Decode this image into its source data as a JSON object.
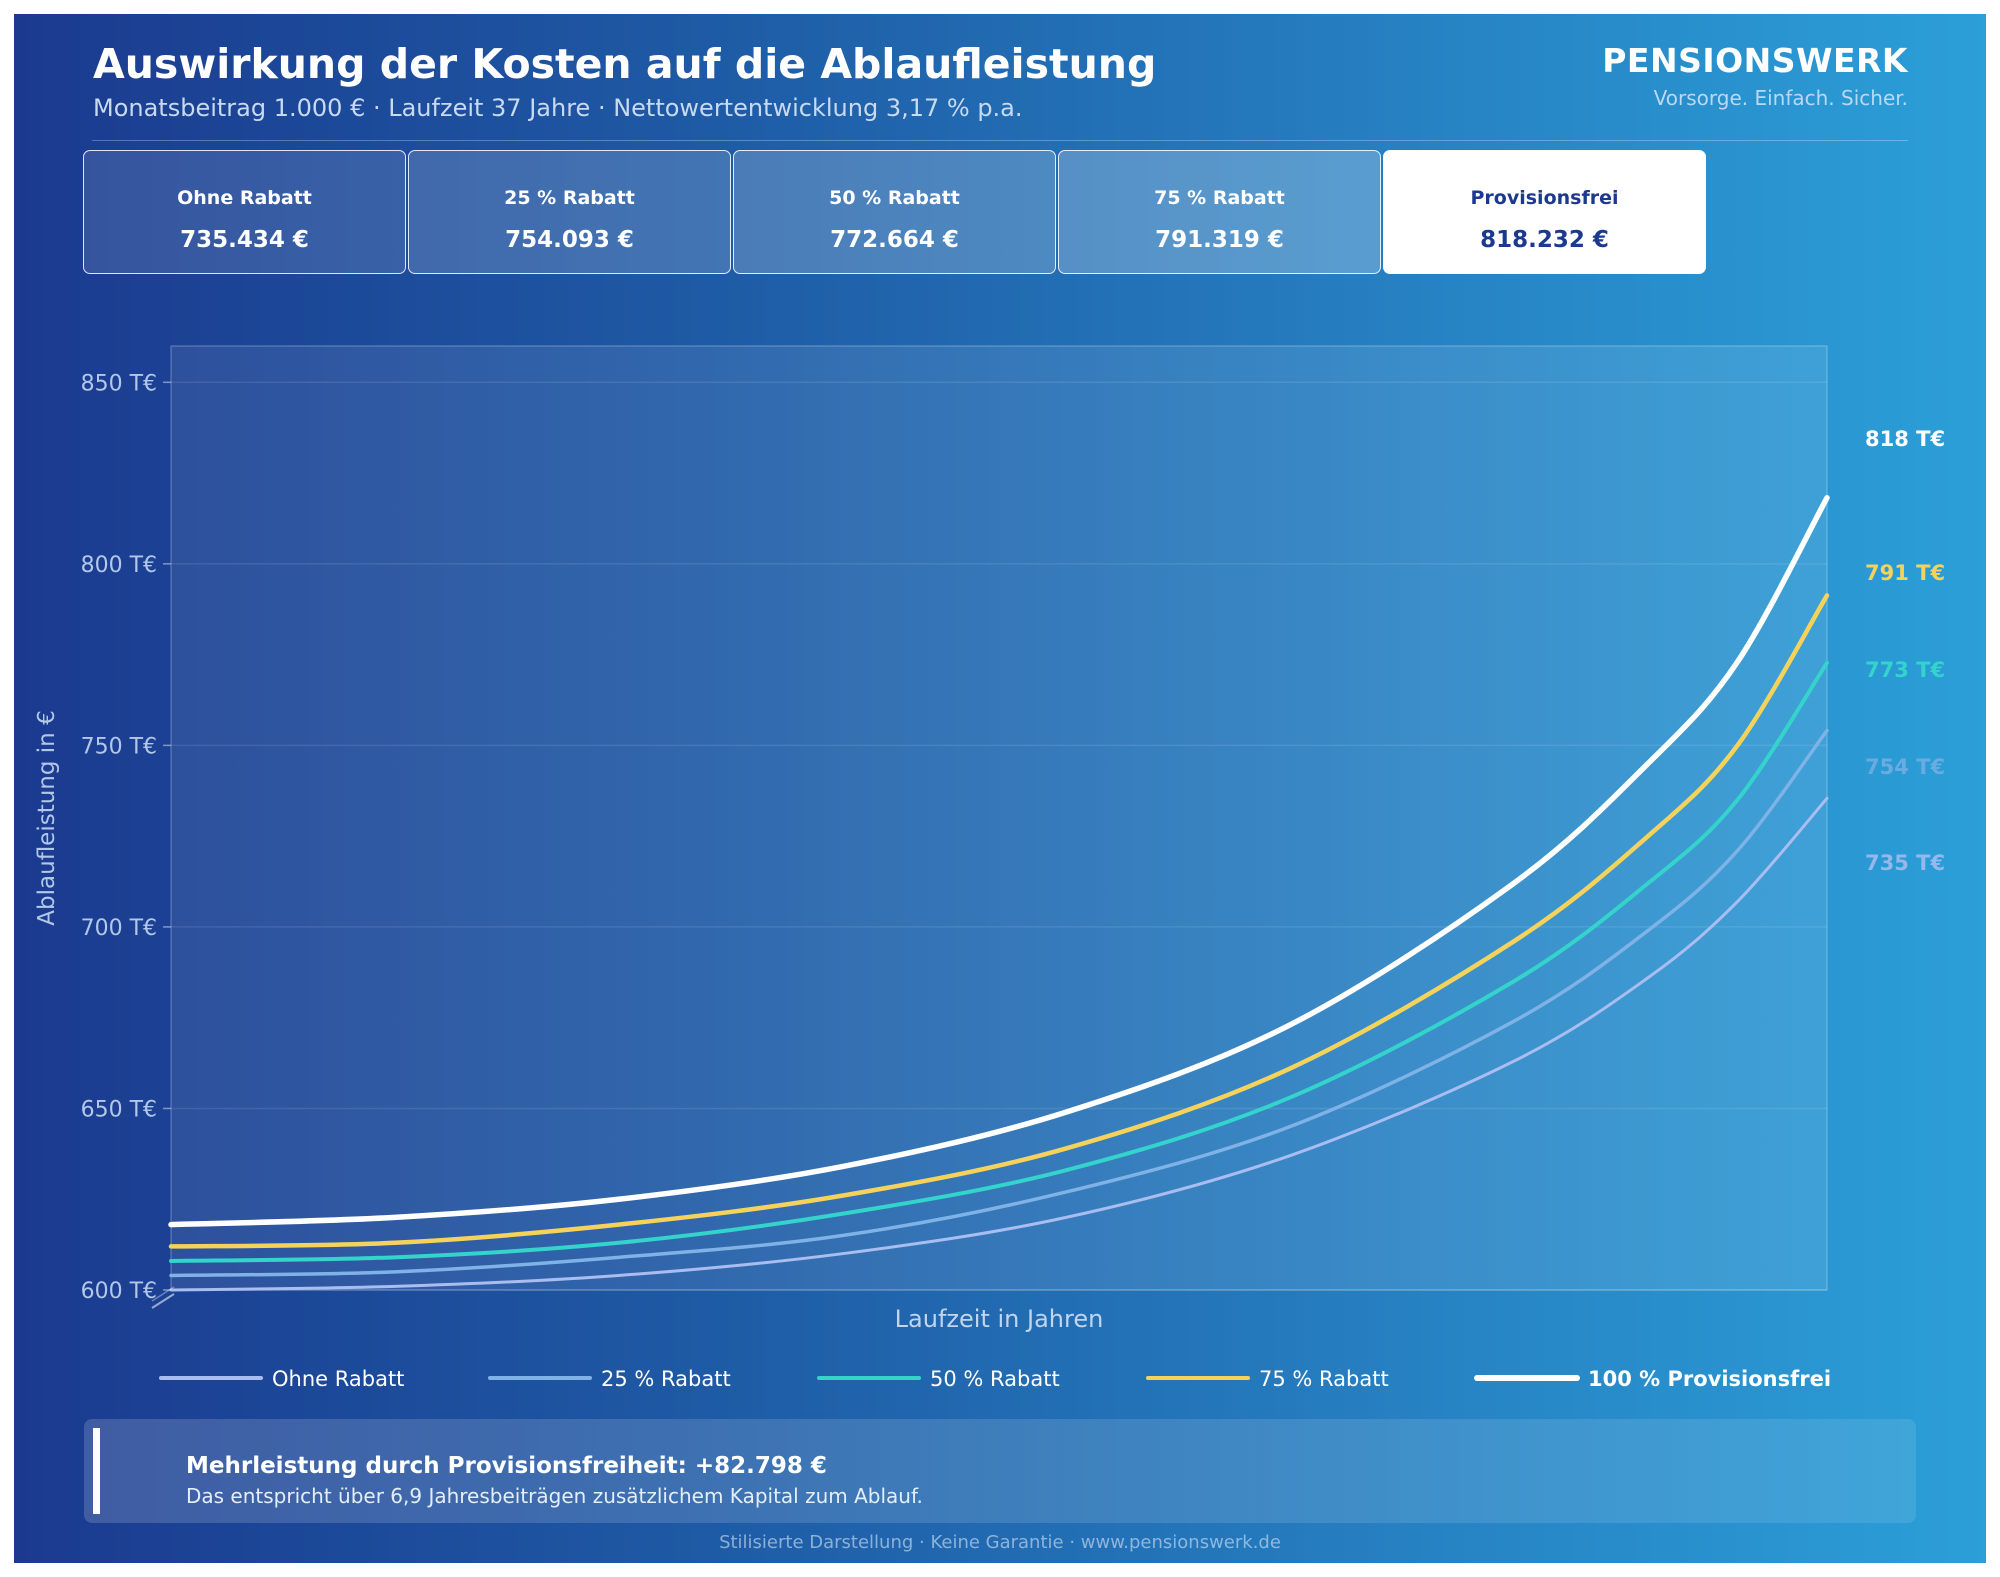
{
  "header": {
    "title": "Auswirkung der Kosten auf die Ablaufleistung",
    "subtitle": "Monatsbeitrag 1.000 €  ·  Laufzeit 37 Jahre  ·  Nettowertentwicklung 3,17 % p.a.",
    "brand": "PENSIONSWERK",
    "tagline": "Vorsorge. Einfach. Sicher."
  },
  "cards": [
    {
      "label": "Ohne Rabatt",
      "value": "735.434 €"
    },
    {
      "label": "25 % Rabatt",
      "value": "754.093 €"
    },
    {
      "label": "50 % Rabatt",
      "value": "772.664 €"
    },
    {
      "label": "75 % Rabatt",
      "value": "791.319 €"
    },
    {
      "label": "Provisionsfrei",
      "value": "818.232 €"
    }
  ],
  "colors": {
    "ohne": "#a9bdf0",
    "r25": "#7fb2e6",
    "r50": "#34d3cc",
    "r75": "#f5d35a",
    "frei": "#ffffff",
    "axis_text": "#b3c7e8"
  },
  "chart_data": {
    "type": "line",
    "title": "",
    "xlabel": "Laufzeit in Jahren",
    "ylabel": "Ablaufleistung in €",
    "x": [
      0,
      5,
      10,
      15,
      20,
      25,
      30,
      33,
      35,
      37
    ],
    "ylim": [
      600,
      860
    ],
    "yticks": [
      600,
      650,
      700,
      750,
      800,
      850
    ],
    "ytick_labels": [
      "600 T€",
      "650 T€",
      "700 T€",
      "750 T€",
      "800 T€",
      "850 T€"
    ],
    "series": [
      {
        "name": "Ohne Rabatt",
        "color_key": "ohne",
        "end_label": "735 T€",
        "values": [
          600,
          601,
          604,
          610,
          620,
          637,
          663,
          686,
          707,
          735.4
        ]
      },
      {
        "name": "25 % Rabatt",
        "color_key": "r25",
        "end_label": "754 T€",
        "values": [
          604,
          605,
          609,
          615,
          627,
          645,
          674,
          699,
          721,
          754.1
        ]
      },
      {
        "name": "50 % Rabatt",
        "color_key": "r50",
        "end_label": "773 T€",
        "values": [
          608,
          609,
          613,
          621,
          633,
          653,
          685,
          712,
          735,
          772.7
        ]
      },
      {
        "name": "75 % Rabatt",
        "color_key": "r75",
        "end_label": "791 T€",
        "values": [
          612,
          613,
          618,
          626,
          639,
          661,
          696,
          725,
          750,
          791.3
        ]
      },
      {
        "name": "100 % Provisionsfrei",
        "color_key": "frei",
        "end_label": "818 T€",
        "values": [
          618,
          620,
          625,
          634,
          649,
          673,
          712,
          745,
          773,
          818.2
        ]
      }
    ],
    "legend_position": "bottom",
    "grid": true
  },
  "callout": {
    "head": "Mehrleistung durch Provisionsfreiheit: +82.798 €",
    "text": "Das entspricht über 6,9 Jahresbeiträgen zusätzlichem Kapital zum Ablauf."
  },
  "footer": "Stilisierte Darstellung · Keine Garantie · www.pensionswerk.de"
}
